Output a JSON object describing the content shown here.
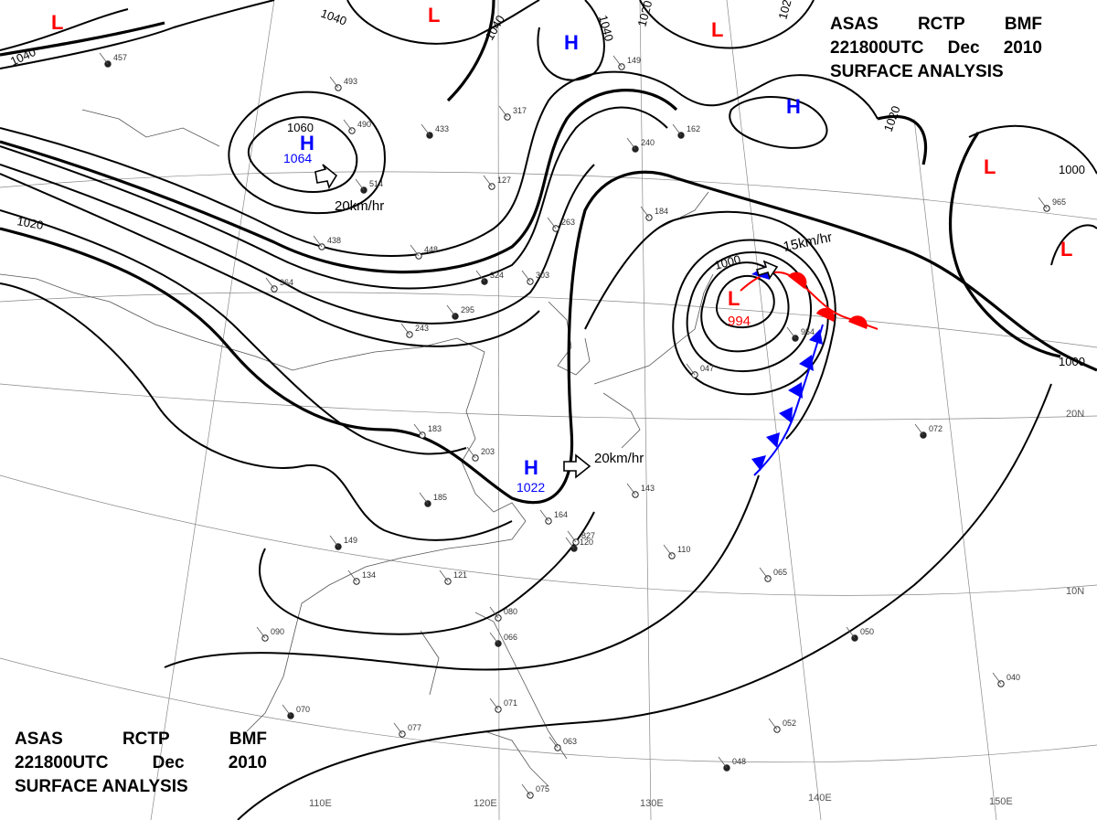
{
  "title": {
    "agency": "ASAS",
    "station": "RCTP",
    "office": "BMF",
    "time": "221800UTC",
    "month": "Dec",
    "year": "2010",
    "product": "SURFACE ANALYSIS"
  },
  "grid": {
    "longitude_labels": [
      "110E",
      "120E",
      "130E",
      "140E",
      "150E"
    ],
    "latitude_labels": [
      "20N",
      "10N"
    ]
  },
  "isobar_labels": [
    "1040",
    "1040",
    "1040",
    "1040",
    "1020",
    "1020",
    "1020",
    "1020",
    "1000",
    "1000",
    "1000",
    "1060"
  ],
  "pressure_centers": [
    {
      "symbol": "L",
      "value": "",
      "color": "#ff0000"
    },
    {
      "symbol": "L",
      "value": "",
      "color": "#ff0000"
    },
    {
      "symbol": "L",
      "value": "",
      "color": "#ff0000"
    },
    {
      "symbol": "L",
      "value": "",
      "color": "#ff0000"
    },
    {
      "symbol": "L",
      "value": "",
      "color": "#ff0000"
    },
    {
      "symbol": "L",
      "value": "994",
      "color": "#ff0000"
    },
    {
      "symbol": "H",
      "value": "",
      "color": "#0000ff"
    },
    {
      "symbol": "H",
      "value": "",
      "color": "#0000ff"
    },
    {
      "symbol": "H",
      "value": "1064",
      "color": "#0000ff"
    },
    {
      "symbol": "H",
      "value": "1022",
      "color": "#0000ff"
    }
  ],
  "motion_labels": [
    "20km/hr",
    "20km/hr",
    "15km/hr"
  ],
  "fronts": {
    "warm_color": "#ff0000",
    "cold_color": "#0000ff"
  },
  "station_numbers": [
    "457",
    "493",
    "490",
    "514",
    "438",
    "448",
    "324",
    "303",
    "364",
    "295",
    "243",
    "317",
    "433",
    "127",
    "263",
    "240",
    "184",
    "149",
    "162",
    "183",
    "203",
    "185",
    "164",
    "143",
    "149",
    "134",
    "121",
    "120",
    "110",
    "090",
    "070",
    "077",
    "071",
    "066",
    "080",
    "063",
    "048",
    "075",
    "040",
    "050",
    "052",
    "065",
    "072",
    "965",
    "047",
    "954",
    "827"
  ]
}
